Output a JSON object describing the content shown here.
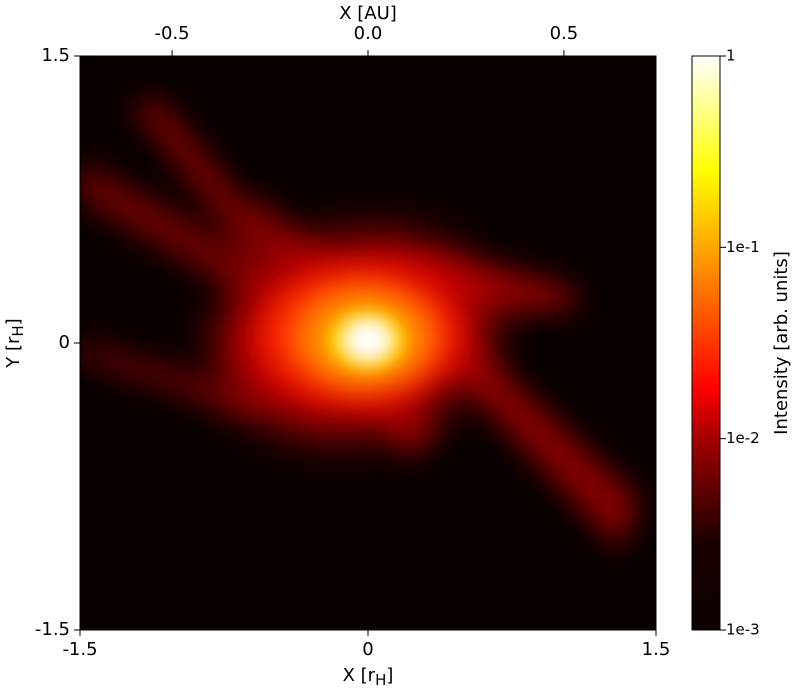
{
  "chart_data": {
    "type": "heatmap",
    "xlabel": [
      "X [r",
      "H",
      "]"
    ],
    "ylabel": [
      "Y [r",
      "H",
      "]"
    ],
    "x2label": "X [AU]",
    "xlim": [
      -1.5,
      1.5
    ],
    "xticks": [
      -1.5,
      0,
      1.5
    ],
    "ylim": [
      -1.5,
      1.5
    ],
    "yticks": [
      -1.5,
      0,
      1.5
    ],
    "x2lim": [
      -0.735,
      0.735
    ],
    "x2ticks": [
      -0.5,
      {
        "value": 0,
        "label": "0.0"
      },
      0.5
    ],
    "colorbar": {
      "label": "Intensity [arb. units]",
      "log": true,
      "lim": [
        0.001,
        1
      ],
      "ticks": [
        {
          "value": 0.001,
          "label": "1e-3"
        },
        {
          "value": 0.01,
          "label": "1e-2"
        },
        {
          "value": 0.1,
          "label": "1e-1"
        },
        1
      ]
    }
  }
}
